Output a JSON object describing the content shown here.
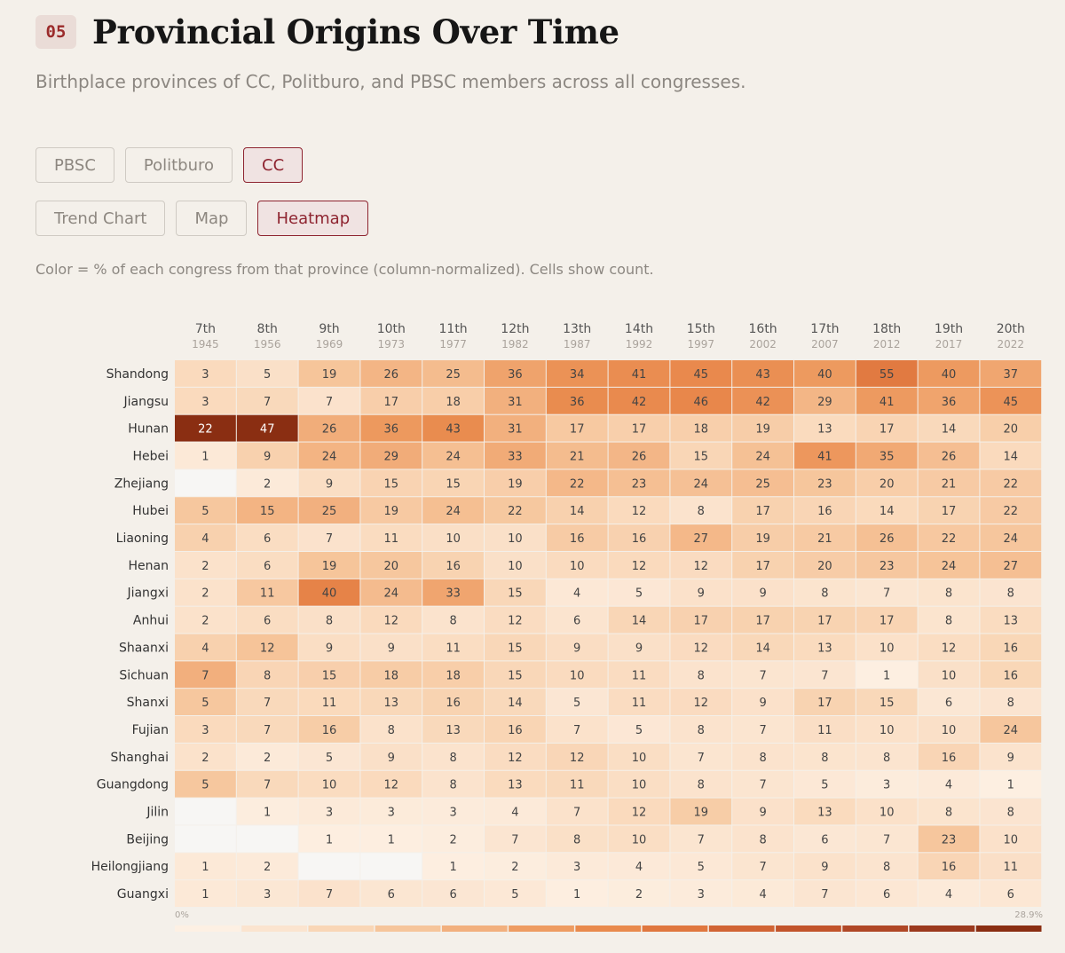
{
  "header": {
    "badge": "05",
    "title": "Provincial Origins Over Time",
    "subtitle": "Birthplace provinces of CC, Politburo, and PBSC members across all congresses."
  },
  "body_filters": [
    {
      "label": "PBSC",
      "active": false
    },
    {
      "label": "Politburo",
      "active": false
    },
    {
      "label": "CC",
      "active": true
    }
  ],
  "view_tabs": [
    {
      "label": "Trend Chart",
      "active": false
    },
    {
      "label": "Map",
      "active": false
    },
    {
      "label": "Heatmap",
      "active": true
    }
  ],
  "note": "Color = % of each congress from that province (column-normalized). Cells show count.",
  "colors": {
    "background": "#f4f0ea",
    "accent": "#8e2430",
    "empty_cell": "#f7f6f4",
    "scale_low": "#fdf0e3",
    "scale_high": "#8a2e12"
  },
  "chart_data": {
    "type": "heatmap",
    "title": "",
    "xlabel": "",
    "ylabel": "",
    "columns": [
      {
        "label": "7th",
        "year": "1945"
      },
      {
        "label": "8th",
        "year": "1956"
      },
      {
        "label": "9th",
        "year": "1969"
      },
      {
        "label": "10th",
        "year": "1973"
      },
      {
        "label": "11th",
        "year": "1977"
      },
      {
        "label": "12th",
        "year": "1982"
      },
      {
        "label": "13th",
        "year": "1987"
      },
      {
        "label": "14th",
        "year": "1992"
      },
      {
        "label": "15th",
        "year": "1997"
      },
      {
        "label": "16th",
        "year": "2002"
      },
      {
        "label": "17th",
        "year": "2007"
      },
      {
        "label": "18th",
        "year": "2012"
      },
      {
        "label": "19th",
        "year": "2017"
      },
      {
        "label": "20th",
        "year": "2022"
      }
    ],
    "rows": [
      {
        "province": "Shandong",
        "values": [
          3,
          5,
          19,
          26,
          25,
          36,
          34,
          41,
          45,
          43,
          40,
          55,
          40,
          37
        ]
      },
      {
        "province": "Jiangsu",
        "values": [
          3,
          7,
          7,
          17,
          18,
          31,
          36,
          42,
          46,
          42,
          29,
          41,
          36,
          45
        ]
      },
      {
        "province": "Hunan",
        "values": [
          22,
          47,
          26,
          36,
          43,
          31,
          17,
          17,
          18,
          19,
          13,
          17,
          14,
          20
        ]
      },
      {
        "province": "Hebei",
        "values": [
          1,
          9,
          24,
          29,
          24,
          33,
          21,
          26,
          15,
          24,
          41,
          35,
          26,
          14
        ]
      },
      {
        "province": "Zhejiang",
        "values": [
          null,
          2,
          9,
          15,
          15,
          19,
          22,
          23,
          24,
          25,
          23,
          20,
          21,
          22
        ]
      },
      {
        "province": "Hubei",
        "values": [
          5,
          15,
          25,
          19,
          24,
          22,
          14,
          12,
          8,
          17,
          16,
          14,
          17,
          22
        ]
      },
      {
        "province": "Liaoning",
        "values": [
          4,
          6,
          7,
          11,
          10,
          10,
          16,
          16,
          27,
          19,
          21,
          26,
          22,
          24
        ]
      },
      {
        "province": "Henan",
        "values": [
          2,
          6,
          19,
          20,
          16,
          10,
          10,
          12,
          12,
          17,
          20,
          23,
          24,
          27
        ]
      },
      {
        "province": "Jiangxi",
        "values": [
          2,
          11,
          40,
          24,
          33,
          15,
          4,
          5,
          9,
          9,
          8,
          7,
          8,
          8
        ]
      },
      {
        "province": "Anhui",
        "values": [
          2,
          6,
          8,
          12,
          8,
          12,
          6,
          14,
          17,
          17,
          17,
          17,
          8,
          13
        ]
      },
      {
        "province": "Shaanxi",
        "values": [
          4,
          12,
          9,
          9,
          11,
          15,
          9,
          9,
          12,
          14,
          13,
          10,
          12,
          16
        ]
      },
      {
        "province": "Sichuan",
        "values": [
          7,
          8,
          15,
          18,
          18,
          15,
          10,
          11,
          8,
          7,
          7,
          1,
          10,
          16
        ]
      },
      {
        "province": "Shanxi",
        "values": [
          5,
          7,
          11,
          13,
          16,
          14,
          5,
          11,
          12,
          9,
          17,
          15,
          6,
          8
        ]
      },
      {
        "province": "Fujian",
        "values": [
          3,
          7,
          16,
          8,
          13,
          16,
          7,
          5,
          8,
          7,
          11,
          10,
          10,
          24
        ]
      },
      {
        "province": "Shanghai",
        "values": [
          2,
          2,
          5,
          9,
          8,
          12,
          12,
          10,
          7,
          8,
          8,
          8,
          16,
          9
        ]
      },
      {
        "province": "Guangdong",
        "values": [
          5,
          7,
          10,
          12,
          8,
          13,
          11,
          10,
          8,
          7,
          5,
          3,
          4,
          1
        ]
      },
      {
        "province": "Jilin",
        "values": [
          null,
          1,
          3,
          3,
          3,
          4,
          7,
          12,
          19,
          9,
          13,
          10,
          8,
          8
        ]
      },
      {
        "province": "Beijing",
        "values": [
          null,
          null,
          1,
          1,
          2,
          7,
          8,
          10,
          7,
          8,
          6,
          7,
          23,
          10
        ]
      },
      {
        "province": "Heilongjiang",
        "values": [
          1,
          2,
          null,
          null,
          1,
          2,
          3,
          4,
          5,
          7,
          9,
          8,
          16,
          11
        ]
      },
      {
        "province": "Guangxi",
        "values": [
          1,
          3,
          7,
          6,
          6,
          5,
          1,
          2,
          3,
          4,
          7,
          6,
          4,
          6
        ]
      }
    ],
    "legend": {
      "min_label": "0%",
      "max_label": "28.9%",
      "min_pct": 0,
      "max_pct": 28.9,
      "steps": [
        "#fdf0e3",
        "#fbe4cf",
        "#f9d6b6",
        "#f6c59b",
        "#f2b07e",
        "#ee9c62",
        "#e98a4d",
        "#e0773f",
        "#d16434",
        "#c2542b",
        "#b04726",
        "#9c3a1e",
        "#8a2e12"
      ]
    }
  }
}
